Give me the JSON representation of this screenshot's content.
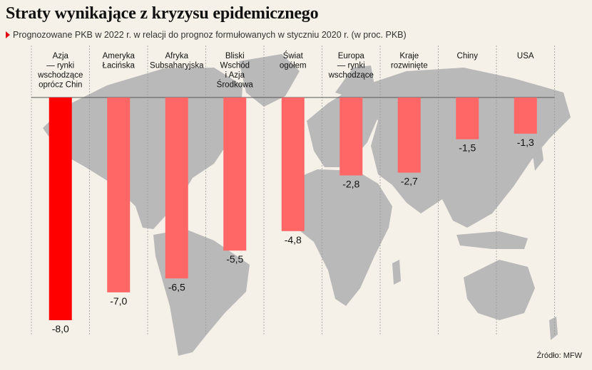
{
  "title": "Straty wynikające z kryzysu epidemicznego",
  "subtitle": "Prognozowane PKB w 2022 r. w relacji do prognoz formułowanych w styczniu 2020 r. (w proc. PKB)",
  "source": "Źródło: MFW",
  "colors": {
    "background": "#f5f1e8",
    "map": "#b9b9b9",
    "bar_highlight": "#ff0000",
    "bar_default": "#ff6666",
    "baseline": "#555555",
    "grid": "#9a9a9a"
  },
  "chart_data": {
    "type": "bar",
    "orientation": "vertical-down",
    "categories": [
      [
        "Azja",
        "— rynki",
        "wschodzące",
        "oprócz Chin"
      ],
      [
        "Ameryka",
        "Łacińska"
      ],
      [
        "Afryka",
        "Subsaharyjska"
      ],
      [
        "Bliski",
        "Wschód",
        "i Azja",
        "Środkowa"
      ],
      [
        "Świat",
        "ogółem"
      ],
      [
        "Europa",
        "— rynki",
        "wschodzące"
      ],
      [
        "Kraje",
        "rozwinięte"
      ],
      [
        "Chiny"
      ],
      [
        "USA"
      ]
    ],
    "values": [
      -8.0,
      -7.0,
      -6.5,
      -5.5,
      -4.8,
      -2.8,
      -2.7,
      -1.5,
      -1.3
    ],
    "value_labels": [
      "-8,0",
      "-7,0",
      "-6,5",
      "-5,5",
      "-4,8",
      "-2,8",
      "-2,7",
      "-1,5",
      "-1,3"
    ],
    "highlight_index": 0,
    "ylim": [
      -8.0,
      0
    ],
    "grid": true,
    "legend": "none"
  }
}
